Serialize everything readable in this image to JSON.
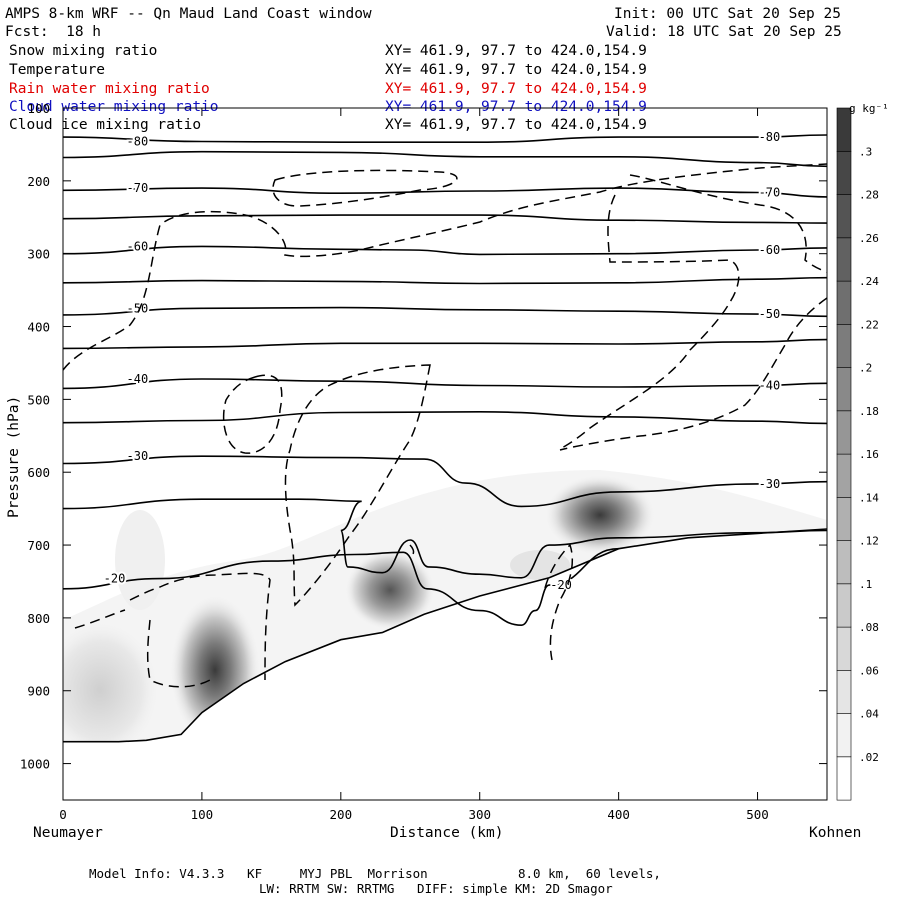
{
  "header": {
    "title": "AMPS 8-km WRF -- Qn Maud Land Coast window",
    "init": "Init: 00 UTC Sat 20 Sep 25",
    "fcst": "Fcst:  18 h",
    "valid": "Valid: 18 UTC Sat 20 Sep 25"
  },
  "fields": [
    {
      "label": "Snow mixing ratio",
      "xy": "XY= 461.9, 97.7 to 424.0,154.9",
      "color": "#000000"
    },
    {
      "label": "Temperature",
      "xy": "XY= 461.9, 97.7 to 424.0,154.9",
      "color": "#000000"
    },
    {
      "label": "Rain water mixing ratio",
      "xy": "XY= 461.9, 97.7 to 424.0,154.9",
      "color": "#e00000"
    },
    {
      "label": "Cloud water mixing ratio",
      "xy": "XY= 461.9, 97.7 to 424.0,154.9",
      "color": "#1010c0"
    },
    {
      "label": "Cloud ice mixing ratio",
      "xy": "XY= 461.9, 97.7 to 424.0,154.9",
      "color": "#000000"
    }
  ],
  "footer": {
    "line1": "Model Info: V4.3.3   KF     MYJ PBL  Morrison            8.0 km,  60 levels,",
    "line2": "LW: RRTM SW: RRTMG   DIFF: simple KM: 2D Smagor"
  },
  "chart_data": {
    "type": "contour",
    "xlabel": "Distance (km)",
    "ylabel": "Pressure (hPa)",
    "xlim": [
      0,
      550
    ],
    "ylim": [
      1050,
      100
    ],
    "x_ticks": [
      0,
      100,
      200,
      300,
      400,
      500
    ],
    "y_ticks": [
      100,
      200,
      300,
      400,
      500,
      600,
      700,
      800,
      900,
      1000
    ],
    "left_endpoint": "Neumayer",
    "right_endpoint": "Kohnen",
    "colorbar": {
      "unit": "g kg⁻¹",
      "levels": [
        ".02",
        ".04",
        ".06",
        ".08",
        ".1",
        ".12",
        ".14",
        ".16",
        ".18",
        ".2",
        ".22",
        ".24",
        ".26",
        ".28",
        ".3"
      ]
    },
    "temperature_contours": [
      {
        "value": -80,
        "label": "-80",
        "points": [
          [
            0,
            140
          ],
          [
            100,
            146
          ],
          [
            200,
            147
          ],
          [
            300,
            147
          ],
          [
            400,
            140
          ],
          [
            500,
            140
          ],
          [
            550,
            137
          ]
        ]
      },
      {
        "value": -75,
        "label": "",
        "points": [
          [
            0,
            168
          ],
          [
            100,
            160
          ],
          [
            200,
            161
          ],
          [
            300,
            167
          ],
          [
            400,
            167
          ],
          [
            500,
            175
          ],
          [
            550,
            180
          ]
        ]
      },
      {
        "value": -70,
        "label": "-70",
        "points": [
          [
            0,
            213
          ],
          [
            100,
            210
          ],
          [
            200,
            217
          ],
          [
            300,
            214
          ],
          [
            400,
            210
          ],
          [
            500,
            216
          ],
          [
            550,
            222
          ]
        ]
      },
      {
        "value": -65,
        "label": "",
        "points": [
          [
            0,
            252
          ],
          [
            100,
            248
          ],
          [
            200,
            247
          ],
          [
            300,
            247
          ],
          [
            400,
            254
          ],
          [
            500,
            257
          ],
          [
            550,
            258
          ]
        ]
      },
      {
        "value": -60,
        "label": "-60",
        "points": [
          [
            0,
            300
          ],
          [
            100,
            290
          ],
          [
            200,
            294
          ],
          [
            250,
            295
          ],
          [
            300,
            301
          ],
          [
            400,
            300
          ],
          [
            500,
            295
          ],
          [
            550,
            292
          ]
        ]
      },
      {
        "value": -55,
        "label": "",
        "points": [
          [
            0,
            340
          ],
          [
            100,
            337
          ],
          [
            200,
            338
          ],
          [
            300,
            341
          ],
          [
            400,
            340
          ],
          [
            500,
            335
          ],
          [
            550,
            333
          ]
        ]
      },
      {
        "value": -50,
        "label": "-50",
        "points": [
          [
            0,
            384
          ],
          [
            100,
            375
          ],
          [
            200,
            374
          ],
          [
            300,
            377
          ],
          [
            400,
            379
          ],
          [
            500,
            383
          ],
          [
            550,
            386
          ]
        ]
      },
      {
        "value": -45,
        "label": "",
        "points": [
          [
            0,
            430
          ],
          [
            100,
            428
          ],
          [
            200,
            423
          ],
          [
            300,
            423
          ],
          [
            400,
            424
          ],
          [
            500,
            421
          ],
          [
            550,
            418
          ]
        ]
      },
      {
        "value": -40,
        "label": "-40",
        "points": [
          [
            0,
            485
          ],
          [
            100,
            472
          ],
          [
            200,
            475
          ],
          [
            300,
            481
          ],
          [
            400,
            483
          ],
          [
            500,
            481
          ],
          [
            550,
            478
          ]
        ]
      },
      {
        "value": -35,
        "label": "",
        "points": [
          [
            0,
            532
          ],
          [
            100,
            529
          ],
          [
            200,
            518
          ],
          [
            300,
            517
          ],
          [
            400,
            524
          ],
          [
            500,
            530
          ],
          [
            550,
            533
          ]
        ]
      },
      {
        "value": -30,
        "label": "-30",
        "points": [
          [
            0,
            588
          ],
          [
            100,
            578
          ],
          [
            200,
            580
          ],
          [
            260,
            582
          ],
          [
            290,
            615
          ],
          [
            330,
            647
          ],
          [
            400,
            627
          ],
          [
            500,
            616
          ],
          [
            550,
            613
          ]
        ]
      },
      {
        "value": -25,
        "label": "",
        "points": [
          [
            0,
            650
          ],
          [
            100,
            637
          ],
          [
            170,
            637
          ],
          [
            215,
            640
          ],
          [
            200,
            680
          ],
          [
            205,
            730
          ],
          [
            230,
            738
          ],
          [
            250,
            693
          ],
          [
            263,
            730
          ],
          [
            300,
            740
          ],
          [
            330,
            745
          ],
          [
            350,
            700
          ],
          [
            400,
            690
          ],
          [
            500,
            683
          ],
          [
            550,
            680
          ]
        ]
      },
      {
        "value": -20,
        "label": "-20",
        "points": [
          [
            0,
            760
          ],
          [
            70,
            746
          ],
          [
            150,
            722
          ],
          [
            210,
            713
          ],
          [
            245,
            710
          ],
          [
            262,
            760
          ],
          [
            300,
            790
          ],
          [
            330,
            810
          ],
          [
            340,
            790
          ],
          [
            350,
            755
          ],
          [
            400,
            705
          ]
        ]
      }
    ],
    "terrain_hpa": [
      [
        0,
        970
      ],
      [
        40,
        970
      ],
      [
        60,
        968
      ],
      [
        85,
        960
      ],
      [
        100,
        930
      ],
      [
        130,
        890
      ],
      [
        160,
        860
      ],
      [
        200,
        830
      ],
      [
        230,
        820
      ],
      [
        260,
        795
      ],
      [
        300,
        770
      ],
      [
        350,
        745
      ],
      [
        400,
        705
      ],
      [
        450,
        690
      ],
      [
        500,
        684
      ],
      [
        550,
        678
      ]
    ],
    "snow_mixing_ratio_maxima_g_per_kg": [
      {
        "x": 105,
        "p": 870,
        "value": 0.3
      },
      {
        "x": 222,
        "p": 770,
        "value": 0.26
      },
      {
        "x": 395,
        "p": 680,
        "value": 0.28
      },
      {
        "x": 20,
        "p": 880,
        "value": 0.08
      }
    ]
  }
}
